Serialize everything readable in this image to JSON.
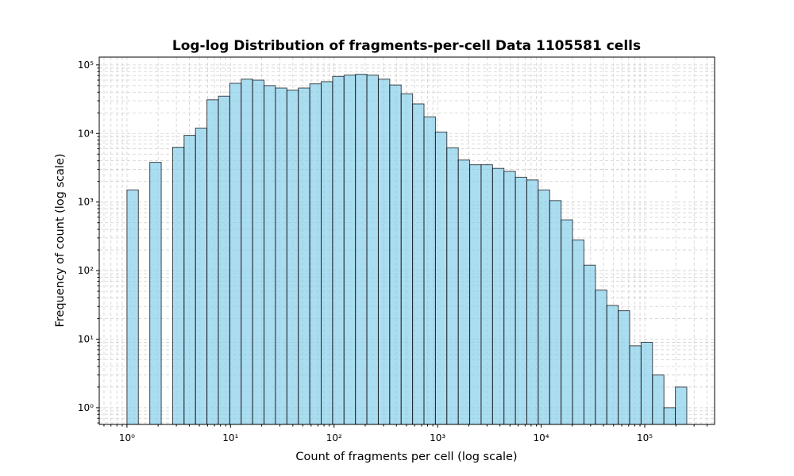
{
  "chart_data": {
    "type": "histogram",
    "title": "Log-log Distribution of fragments-per-cell Data 1105581 cells",
    "xlabel": "Count of fragments per cell (log scale)",
    "ylabel": "Frequency of count (log scale)",
    "xscale": "log",
    "yscale": "log",
    "grid": true,
    "color": "#87ceeb",
    "edgecolor": "#000000",
    "alpha": 0.7,
    "bins": [
      1,
      1.289,
      1.662,
      2.143,
      2.763,
      3.562,
      4.592,
      5.92,
      7.632,
      9.84,
      12.69,
      16.36,
      21.09,
      27.19,
      35.05,
      45.19,
      58.26,
      75.1,
      96.8,
      124.8,
      160.9,
      207.5,
      267.5,
      344.9,
      444.6,
      573.2,
      739,
      952.8,
      1228,
      1584,
      2042,
      2633,
      3394,
      4375,
      5641,
      7272,
      9376,
      12087,
      15583,
      20091,
      25901,
      33393,
      43052,
      55504,
      71558,
      92255,
      118940,
      153340,
      197690,
      254870
    ],
    "values": [
      1500,
      0,
      3800,
      0,
      6300,
      9400,
      12000,
      31000,
      35000,
      54000,
      62000,
      60000,
      50000,
      46000,
      43000,
      46000,
      53000,
      57000,
      68000,
      71000,
      73000,
      71000,
      62000,
      51000,
      38000,
      27000,
      17500,
      10500,
      6200,
      4100,
      3500,
      3500,
      3100,
      2800,
      2300,
      2100,
      1500,
      1050,
      550,
      280,
      120,
      52,
      31,
      26,
      8,
      9,
      3,
      1,
      2
    ],
    "xlim": [
      0.54,
      473000
    ],
    "ylim": [
      0.57,
      130000
    ],
    "xticks": [
      {
        "value": 1,
        "label": "10⁰"
      },
      {
        "value": 10,
        "label": "10¹"
      },
      {
        "value": 100,
        "label": "10²"
      },
      {
        "value": 1000,
        "label": "10³"
      },
      {
        "value": 10000,
        "label": "10⁴"
      },
      {
        "value": 100000,
        "label": "10⁵"
      }
    ],
    "yticks": [
      {
        "value": 1,
        "label": "10⁰"
      },
      {
        "value": 10,
        "label": "10¹"
      },
      {
        "value": 100,
        "label": "10²"
      },
      {
        "value": 1000,
        "label": "10³"
      },
      {
        "value": 10000,
        "label": "10⁴"
      },
      {
        "value": 100000,
        "label": "10⁵"
      }
    ],
    "xminorticks": [
      0.6,
      0.7,
      0.8,
      0.9,
      2,
      3,
      4,
      5,
      6,
      7,
      8,
      9,
      20,
      30,
      40,
      50,
      60,
      70,
      80,
      90,
      200,
      300,
      400,
      500,
      600,
      700,
      800,
      900,
      2000,
      3000,
      4000,
      5000,
      6000,
      7000,
      8000,
      9000,
      20000,
      30000,
      40000,
      50000,
      60000,
      70000,
      80000,
      90000,
      200000,
      300000,
      400000
    ],
    "yminorticks": [
      0.6,
      0.7,
      0.8,
      0.9,
      2,
      3,
      4,
      5,
      6,
      7,
      8,
      9,
      20,
      30,
      40,
      50,
      60,
      70,
      80,
      90,
      200,
      300,
      400,
      500,
      600,
      700,
      800,
      900,
      2000,
      3000,
      4000,
      5000,
      6000,
      7000,
      8000,
      9000,
      20000,
      30000,
      40000,
      50000,
      60000,
      70000,
      80000,
      90000
    ]
  }
}
